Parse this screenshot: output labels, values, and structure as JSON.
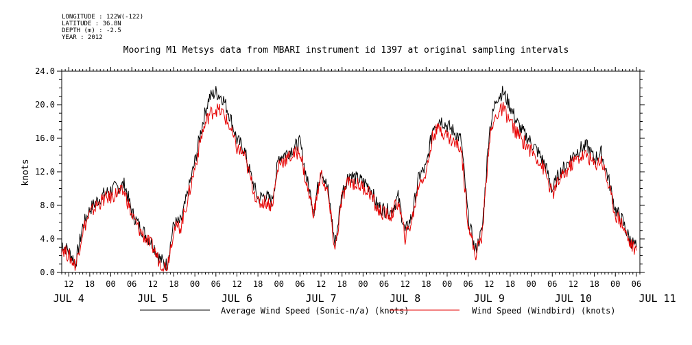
{
  "meta": {
    "longitude": "LONGITUDE : 122W(-122)",
    "latitude": "LATITUDE : 36.8N",
    "depth": "DEPTH (m) : -2.5",
    "year": "YEAR : 2012"
  },
  "chart_data": {
    "type": "line",
    "title": "Mooring M1 Metsys data from MBARI instrument id 1397 at original sampling intervals",
    "xlabel": "",
    "ylabel": "knots",
    "ylim": [
      0,
      24
    ],
    "yticks": [
      "0.0",
      "4.0",
      "8.0",
      "12.0",
      "16.0",
      "20.0",
      "24.0"
    ],
    "xlim_hours": [
      10,
      175
    ],
    "hour_tick_labels": [
      "12",
      "18",
      "00",
      "06",
      "12",
      "18",
      "00",
      "06",
      "12",
      "18",
      "00",
      "06",
      "12",
      "18",
      "00",
      "06",
      "12",
      "18",
      "00",
      "06",
      "12",
      "18",
      "00",
      "06",
      "12",
      "18",
      "00",
      "06"
    ],
    "day_labels": [
      "JUL 4",
      "JUL 5",
      "JUL 6",
      "JUL 7",
      "JUL 8",
      "JUL 9",
      "JUL 10",
      "JUL 11"
    ],
    "grid": false,
    "legend_position": "bottom",
    "series": [
      {
        "name": "Average Wind Speed (Sonic-n/a) (knots)",
        "color": "#000000",
        "x": [
          10,
          12,
          14,
          16,
          18,
          20,
          22,
          24,
          26,
          28,
          30,
          32,
          34,
          36,
          38,
          40,
          42,
          44,
          46,
          48,
          50,
          52,
          54,
          56,
          58,
          60,
          62,
          64,
          66,
          68,
          70,
          72,
          74,
          76,
          78,
          80,
          82,
          84,
          86,
          88,
          90,
          92,
          94,
          96,
          98,
          100,
          102,
          104,
          106,
          108,
          110,
          112,
          114,
          116,
          118,
          120,
          122,
          124,
          126,
          128,
          130,
          132,
          134,
          136,
          138,
          140,
          142,
          144,
          146,
          148,
          150,
          152,
          154,
          156,
          158,
          160,
          162,
          164,
          166,
          168,
          170,
          172,
          174
        ],
        "y": [
          3.5,
          2.5,
          1.2,
          5.5,
          7.5,
          8.5,
          9.3,
          9.8,
          10.2,
          10.5,
          7.2,
          5.6,
          4.5,
          3.4,
          1.6,
          0.9,
          5.8,
          6.0,
          9.5,
          13.2,
          17.5,
          20.8,
          21.5,
          20.8,
          18.7,
          15.8,
          14.8,
          11.5,
          8.8,
          9.2,
          8.5,
          13.8,
          14.2,
          14.8,
          15.5,
          11.0,
          7.5,
          12.5,
          9.8,
          3.2,
          9.5,
          11.8,
          11.2,
          10.8,
          10.2,
          8.0,
          7.5,
          7.2,
          9.0,
          4.8,
          6.8,
          11.5,
          12.5,
          17.5,
          18.3,
          17.5,
          16.8,
          15.8,
          6.5,
          2.5,
          5.0,
          16.8,
          20.8,
          21.5,
          19.8,
          17.8,
          16.5,
          15.5,
          14.3,
          12.8,
          9.8,
          11.8,
          12.8,
          14.0,
          14.8,
          15.0,
          13.5,
          14.3,
          11.2,
          7.5,
          6.2,
          4.0,
          3.0
        ]
      },
      {
        "name": "Wind Speed (Windbird) (knots)",
        "color": "#e60000",
        "x": [
          10,
          12,
          14,
          16,
          18,
          20,
          22,
          24,
          26,
          28,
          30,
          32,
          34,
          36,
          38,
          40,
          42,
          44,
          46,
          48,
          50,
          52,
          54,
          56,
          58,
          60,
          62,
          64,
          66,
          68,
          70,
          72,
          74,
          76,
          78,
          80,
          82,
          84,
          86,
          88,
          90,
          92,
          94,
          96,
          98,
          100,
          102,
          104,
          106,
          108,
          110,
          112,
          114,
          116,
          118,
          120,
          122,
          124,
          126,
          128,
          130,
          132,
          134,
          136,
          138,
          140,
          142,
          144,
          146,
          148,
          150,
          152,
          154,
          156,
          158,
          160,
          162,
          164,
          166,
          168,
          170,
          172,
          174
        ],
        "y": [
          3.0,
          2.0,
          0.8,
          5.0,
          7.0,
          8.0,
          8.7,
          9.0,
          9.5,
          9.5,
          6.8,
          5.2,
          4.0,
          3.0,
          1.2,
          0.6,
          5.2,
          5.5,
          8.8,
          12.5,
          16.5,
          18.8,
          19.5,
          19.0,
          17.3,
          14.8,
          14.0,
          11.0,
          8.2,
          8.5,
          8.0,
          13.0,
          13.5,
          14.0,
          14.5,
          10.2,
          7.0,
          11.8,
          9.2,
          2.6,
          8.8,
          11.0,
          10.5,
          10.2,
          9.5,
          7.5,
          7.0,
          6.8,
          8.5,
          4.2,
          6.2,
          10.8,
          11.8,
          16.5,
          17.2,
          16.3,
          15.5,
          14.8,
          6.0,
          2.0,
          4.5,
          15.8,
          18.8,
          19.5,
          18.0,
          16.5,
          15.5,
          14.5,
          13.5,
          12.0,
          9.2,
          11.0,
          12.0,
          13.2,
          13.8,
          14.0,
          12.8,
          13.5,
          10.5,
          7.0,
          5.8,
          3.6,
          2.6
        ]
      }
    ]
  }
}
